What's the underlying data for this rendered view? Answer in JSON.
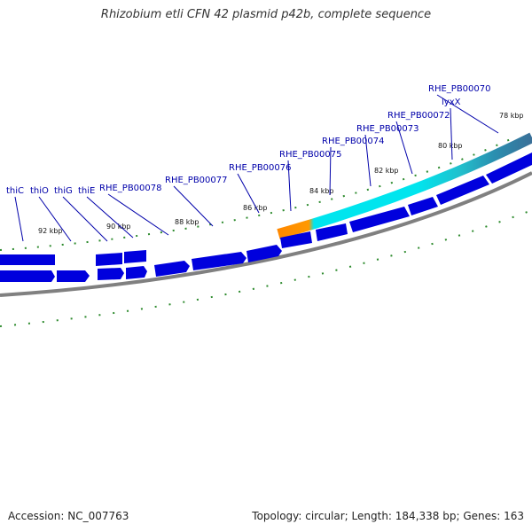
{
  "title": "Rhizobium etli CFN 42 plasmid p42b, complete sequence",
  "footer": {
    "accession": "Accession: NC_007763",
    "summary": "Topology: circular; Length: 184,338 bp; Genes: 163"
  },
  "tick_labels": [
    "92 kbp",
    "90 kbp",
    "88 kbp",
    "86 kbp",
    "84 kbp",
    "82 kbp",
    "80 kbp",
    "78 kbp"
  ],
  "gene_labels": [
    "thiC",
    "thiO",
    "thiG",
    "thiE",
    "RHE_PB00078",
    "RHE_PB00077",
    "RHE_PB00076",
    "RHE_PB00075",
    "RHE_PB00074",
    "RHE_PB00073",
    "RHE_PB00072",
    "lyxX",
    "RHE_PB00070"
  ],
  "colors": {
    "gene_blue": "#0000dd",
    "backbone": "#808080",
    "tick_green": "#2e8b2e",
    "label_blue": "#0000aa",
    "highlight_orange": "#ff8800",
    "highlight_cyan": "#00e5ee",
    "highlight_teal": "#2aa0b0",
    "highlight_steel": "#3a78a0"
  }
}
